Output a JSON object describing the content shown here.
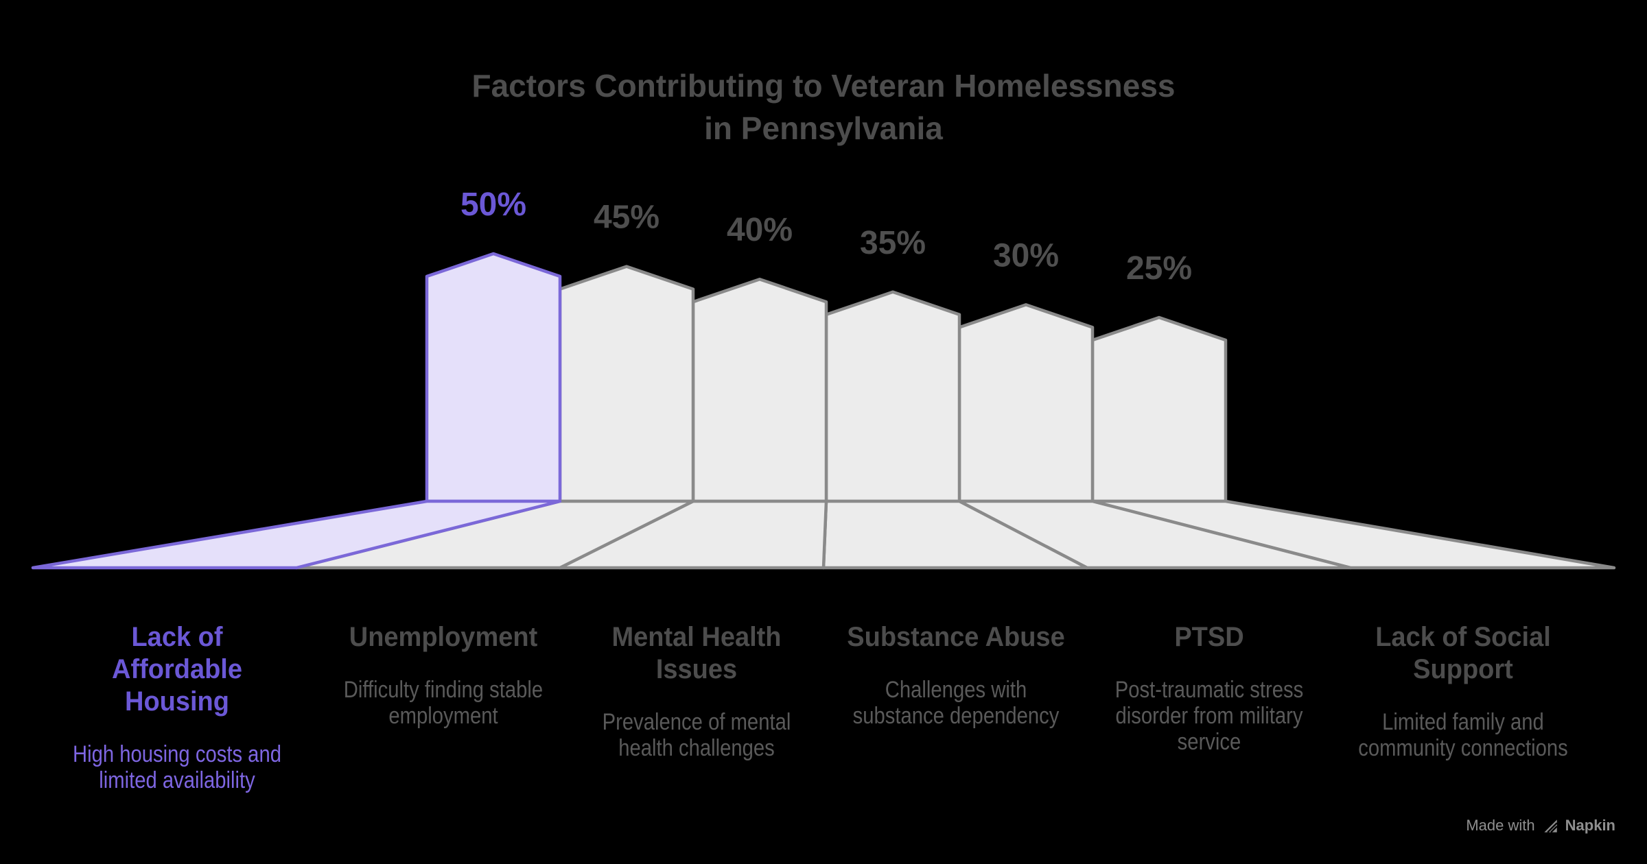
{
  "title": "Factors Contributing to Veteran Homelessness\nin Pennsylvania",
  "chart_data": {
    "type": "bar",
    "style": "pencil-pillar-pictogram-with-perspective-floor",
    "title": "Factors Contributing to Veteran Homelessness in Pennsylvania",
    "unit": "%",
    "ylim": [
      0,
      50
    ],
    "grid": false,
    "legend": false,
    "highlight_index": 0,
    "categories": [
      "Lack of Affordable Housing",
      "Unemployment",
      "Mental Health Issues",
      "Substance Abuse",
      "PTSD",
      "Lack of Social Support"
    ],
    "values": [
      50,
      45,
      40,
      35,
      30,
      25
    ],
    "value_labels": [
      "50%",
      "45%",
      "40%",
      "35%",
      "30%",
      "25%"
    ],
    "factors": [
      {
        "label": "Lack of\nAffordable\nHousing",
        "description": "High housing costs and\nlimited availability",
        "value": 50,
        "value_label": "50%",
        "highlighted": true
      },
      {
        "label": "Unemployment",
        "description": "Difficulty finding stable\nemployment",
        "value": 45,
        "value_label": "45%",
        "highlighted": false
      },
      {
        "label": "Mental Health\nIssues",
        "description": "Prevalence of mental\nhealth challenges",
        "value": 40,
        "value_label": "40%",
        "highlighted": false
      },
      {
        "label": "Substance Abuse",
        "description": "Challenges with\nsubstance dependency",
        "value": 35,
        "value_label": "35%",
        "highlighted": false
      },
      {
        "label": "PTSD",
        "description": "Post-traumatic stress\ndisorder from military\nservice",
        "value": 30,
        "value_label": "30%",
        "highlighted": false
      },
      {
        "label": "Lack of Social\nSupport",
        "description": "Limited family and\ncommunity connections",
        "value": 25,
        "value_label": "25%",
        "highlighted": false
      }
    ]
  },
  "watermark": {
    "text": "Made with",
    "brand": "Napkin"
  },
  "colors": {
    "background": "#000000",
    "title": "#4d4d4d",
    "heading": "#4d4d4d",
    "description": "#5a5a5a",
    "value_label": "#4f4f4f",
    "accent_text": "#6b58d6",
    "accent_text_light": "#7e66e2",
    "accent_stroke": "#7b68d8",
    "accent_fill": "#e5e0fa",
    "pillar_fill": "#ececec",
    "pillar_stroke": "#8a8a8a",
    "watermark": "#8f8f8f"
  }
}
